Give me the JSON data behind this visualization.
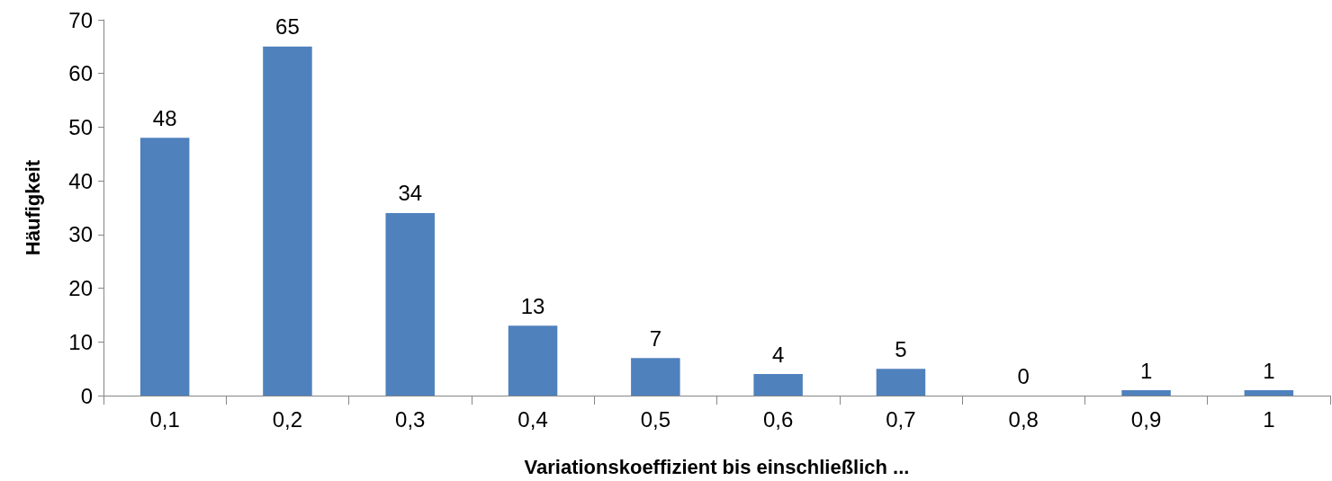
{
  "chart_data": {
    "type": "bar",
    "xlabel": "Variationskoeffizient bis einschließlich ...",
    "ylabel": "Häufigkeit",
    "categories": [
      "0,1",
      "0,2",
      "0,3",
      "0,4",
      "0,5",
      "0,6",
      "0,7",
      "0,8",
      "0,9",
      "1"
    ],
    "values": [
      48,
      65,
      34,
      13,
      7,
      4,
      5,
      0,
      1,
      1
    ],
    "color": "#4f81bd",
    "ylim": [
      0,
      70
    ],
    "yticks": [
      0,
      10,
      20,
      30,
      40,
      50,
      60,
      70
    ],
    "grid": false,
    "data_labels": true
  }
}
